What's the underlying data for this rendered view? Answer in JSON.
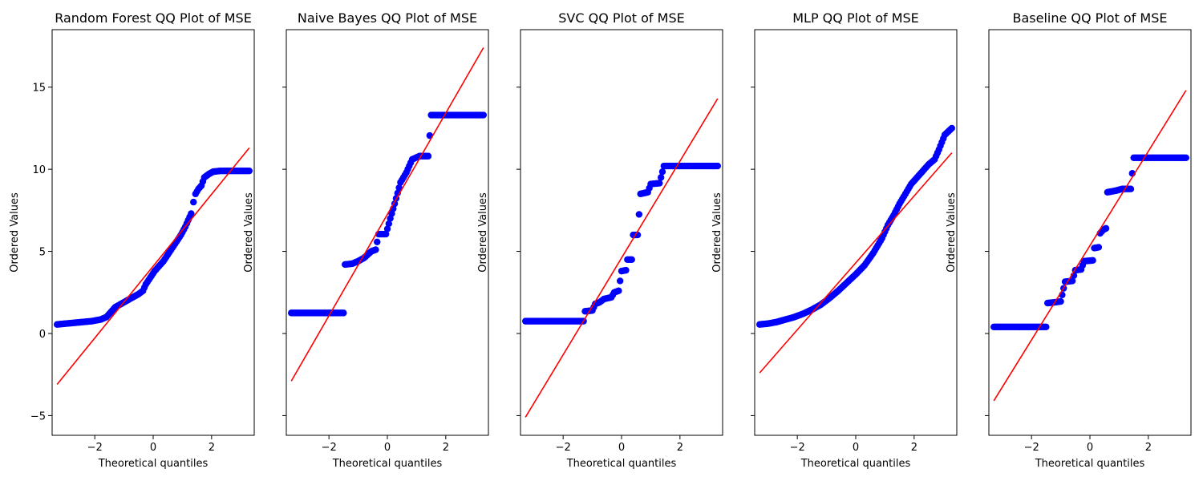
{
  "chart_data": [
    {
      "type": "scatter",
      "title": "Random Forest QQ Plot of MSE",
      "xlabel": "Theoretical quantiles",
      "ylabel": "Ordered Values",
      "xlim": [
        -3.46,
        3.46
      ],
      "ylim": [
        -6.2,
        18.5
      ],
      "xticks": [
        -2,
        0,
        2
      ],
      "yticks": [
        -5,
        0,
        5,
        10,
        15
      ],
      "fit_line": {
        "x": [
          -3.29,
          3.29
        ],
        "y": [
          -3.1,
          11.3
        ]
      },
      "series": [
        {
          "values": [
            [
              -3.29,
              0.55
            ],
            [
              -3.0,
              0.6
            ],
            [
              -2.7,
              0.65
            ],
            [
              -2.4,
              0.7
            ],
            [
              -2.1,
              0.75
            ],
            [
              -1.8,
              0.85
            ],
            [
              -1.6,
              1.0
            ],
            [
              -1.45,
              1.3
            ],
            [
              -1.3,
              1.6
            ],
            [
              -1.1,
              1.8
            ],
            [
              -0.9,
              2.0
            ],
            [
              -0.7,
              2.2
            ],
            [
              -0.5,
              2.4
            ],
            [
              -0.35,
              2.6
            ],
            [
              -0.25,
              3.0
            ],
            [
              -0.1,
              3.4
            ],
            [
              0.05,
              3.8
            ],
            [
              0.2,
              4.1
            ],
            [
              0.35,
              4.4
            ],
            [
              0.5,
              4.8
            ],
            [
              0.65,
              5.2
            ],
            [
              0.8,
              5.6
            ],
            [
              0.95,
              6.0
            ],
            [
              1.1,
              6.5
            ],
            [
              1.2,
              6.9
            ],
            [
              1.3,
              7.3
            ],
            [
              1.38,
              8.0
            ],
            [
              1.45,
              8.5
            ],
            [
              1.55,
              8.8
            ],
            [
              1.65,
              9.0
            ],
            [
              1.75,
              9.5
            ],
            [
              1.9,
              9.7
            ],
            [
              2.05,
              9.85
            ],
            [
              2.3,
              9.9
            ],
            [
              2.6,
              9.9
            ],
            [
              2.9,
              9.9
            ],
            [
              3.29,
              9.9
            ]
          ]
        }
      ]
    },
    {
      "type": "scatter",
      "title": "Naive Bayes QQ Plot of MSE",
      "xlabel": "Theoretical quantiles",
      "ylabel": "Ordered Values",
      "xlim": [
        -3.46,
        3.46
      ],
      "ylim": [
        -6.2,
        18.5
      ],
      "xticks": [
        -2,
        0,
        2
      ],
      "yticks": [
        -5,
        0,
        5,
        10,
        15
      ],
      "fit_line": {
        "x": [
          -3.29,
          3.29
        ],
        "y": [
          -2.9,
          17.4
        ]
      },
      "series": [
        {
          "values": [
            [
              -3.29,
              1.25
            ],
            [
              -3.0,
              1.25
            ],
            [
              -2.7,
              1.25
            ],
            [
              -2.4,
              1.25
            ],
            [
              -2.1,
              1.25
            ],
            [
              -1.8,
              1.25
            ],
            [
              -1.5,
              1.25
            ],
            [
              -1.45,
              4.2
            ],
            [
              -1.2,
              4.25
            ],
            [
              -1.0,
              4.4
            ],
            [
              -0.8,
              4.6
            ],
            [
              -0.55,
              5.0
            ],
            [
              -0.4,
              5.1
            ],
            [
              -0.3,
              6.05
            ],
            [
              -0.05,
              6.05
            ],
            [
              0.1,
              7.0
            ],
            [
              0.25,
              7.9
            ],
            [
              0.45,
              9.2
            ],
            [
              0.65,
              9.8
            ],
            [
              0.85,
              10.6
            ],
            [
              1.1,
              10.8
            ],
            [
              1.4,
              10.8
            ],
            [
              1.5,
              13.3
            ],
            [
              1.8,
              13.3
            ],
            [
              2.1,
              13.3
            ],
            [
              2.4,
              13.3
            ],
            [
              2.7,
              13.3
            ],
            [
              3.0,
              13.3
            ],
            [
              3.29,
              13.3
            ]
          ]
        }
      ]
    },
    {
      "type": "scatter",
      "title": "SVC QQ Plot of MSE",
      "xlabel": "Theoretical quantiles",
      "ylabel": "Ordered Values",
      "xlim": [
        -3.46,
        3.46
      ],
      "ylim": [
        -6.2,
        18.5
      ],
      "xticks": [
        -2,
        0,
        2
      ],
      "yticks": [
        -5,
        0,
        5,
        10,
        15
      ],
      "fit_line": {
        "x": [
          -3.29,
          3.29
        ],
        "y": [
          -5.1,
          14.3
        ]
      },
      "series": [
        {
          "values": [
            [
              -3.29,
              0.75
            ],
            [
              -3.0,
              0.75
            ],
            [
              -2.7,
              0.75
            ],
            [
              -2.4,
              0.75
            ],
            [
              -2.1,
              0.75
            ],
            [
              -1.8,
              0.75
            ],
            [
              -1.5,
              0.75
            ],
            [
              -1.3,
              0.75
            ],
            [
              -1.25,
              1.35
            ],
            [
              -1.0,
              1.4
            ],
            [
              -0.9,
              1.8
            ],
            [
              -0.75,
              1.9
            ],
            [
              -0.6,
              2.1
            ],
            [
              -0.35,
              2.2
            ],
            [
              -0.25,
              2.5
            ],
            [
              -0.1,
              2.6
            ],
            [
              0.0,
              3.8
            ],
            [
              0.15,
              3.85
            ],
            [
              0.2,
              4.5
            ],
            [
              0.35,
              4.5
            ],
            [
              0.4,
              6.0
            ],
            [
              0.55,
              6.0
            ],
            [
              0.65,
              8.5
            ],
            [
              0.9,
              8.6
            ],
            [
              1.0,
              9.1
            ],
            [
              1.3,
              9.15
            ],
            [
              1.45,
              10.2
            ],
            [
              1.8,
              10.2
            ],
            [
              2.1,
              10.2
            ],
            [
              2.4,
              10.2
            ],
            [
              2.7,
              10.2
            ],
            [
              3.0,
              10.2
            ],
            [
              3.29,
              10.2
            ]
          ]
        }
      ]
    },
    {
      "type": "scatter",
      "title": "MLP QQ Plot of MSE",
      "xlabel": "Theoretical quantiles",
      "ylabel": "Ordered Values",
      "xlim": [
        -3.46,
        3.46
      ],
      "ylim": [
        -6.2,
        18.5
      ],
      "xticks": [
        -2,
        0,
        2
      ],
      "yticks": [
        -5,
        0,
        5,
        10,
        15
      ],
      "fit_line": {
        "x": [
          -3.29,
          3.29
        ],
        "y": [
          -2.4,
          11.0
        ]
      },
      "series": [
        {
          "values": [
            [
              -3.29,
              0.55
            ],
            [
              -3.0,
              0.6
            ],
            [
              -2.7,
              0.7
            ],
            [
              -2.4,
              0.85
            ],
            [
              -2.1,
              1.0
            ],
            [
              -1.8,
              1.2
            ],
            [
              -1.5,
              1.45
            ],
            [
              -1.2,
              1.75
            ],
            [
              -0.9,
              2.15
            ],
            [
              -0.6,
              2.6
            ],
            [
              -0.3,
              3.1
            ],
            [
              0.0,
              3.6
            ],
            [
              0.3,
              4.15
            ],
            [
              0.6,
              4.9
            ],
            [
              0.9,
              5.8
            ],
            [
              1.1,
              6.6
            ],
            [
              1.3,
              7.2
            ],
            [
              1.5,
              7.9
            ],
            [
              1.7,
              8.5
            ],
            [
              1.9,
              9.1
            ],
            [
              2.1,
              9.5
            ],
            [
              2.3,
              9.9
            ],
            [
              2.5,
              10.3
            ],
            [
              2.7,
              10.6
            ],
            [
              2.85,
              11.2
            ],
            [
              3.05,
              12.1
            ],
            [
              3.29,
              12.5
            ]
          ]
        }
      ]
    },
    {
      "type": "scatter",
      "title": "Baseline QQ Plot of MSE",
      "xlabel": "Theoretical quantiles",
      "ylabel": "Ordered Values",
      "xlim": [
        -3.46,
        3.46
      ],
      "ylim": [
        -6.2,
        18.5
      ],
      "xticks": [
        -2,
        0,
        2
      ],
      "yticks": [
        -5,
        0,
        5,
        10,
        15
      ],
      "fit_line": {
        "x": [
          -3.29,
          3.29
        ],
        "y": [
          -4.1,
          14.8
        ]
      },
      "series": [
        {
          "values": [
            [
              -3.29,
              0.4
            ],
            [
              -3.0,
              0.4
            ],
            [
              -2.7,
              0.4
            ],
            [
              -2.4,
              0.4
            ],
            [
              -2.1,
              0.4
            ],
            [
              -1.8,
              0.4
            ],
            [
              -1.5,
              0.4
            ],
            [
              -1.45,
              1.85
            ],
            [
              -1.2,
              1.9
            ],
            [
              -1.0,
              1.95
            ],
            [
              -0.85,
              3.15
            ],
            [
              -0.6,
              3.2
            ],
            [
              -0.5,
              3.85
            ],
            [
              -0.3,
              3.9
            ],
            [
              -0.2,
              4.4
            ],
            [
              0.1,
              4.45
            ],
            [
              0.15,
              5.2
            ],
            [
              0.3,
              5.25
            ],
            [
              0.35,
              6.1
            ],
            [
              0.45,
              6.3
            ],
            [
              0.55,
              6.4
            ],
            [
              0.6,
              8.6
            ],
            [
              0.9,
              8.7
            ],
            [
              1.1,
              8.8
            ],
            [
              1.4,
              8.8
            ],
            [
              1.5,
              10.7
            ],
            [
              1.8,
              10.7
            ],
            [
              2.1,
              10.7
            ],
            [
              2.4,
              10.7
            ],
            [
              2.7,
              10.7
            ],
            [
              3.0,
              10.7
            ],
            [
              3.29,
              10.7
            ]
          ]
        }
      ]
    }
  ]
}
